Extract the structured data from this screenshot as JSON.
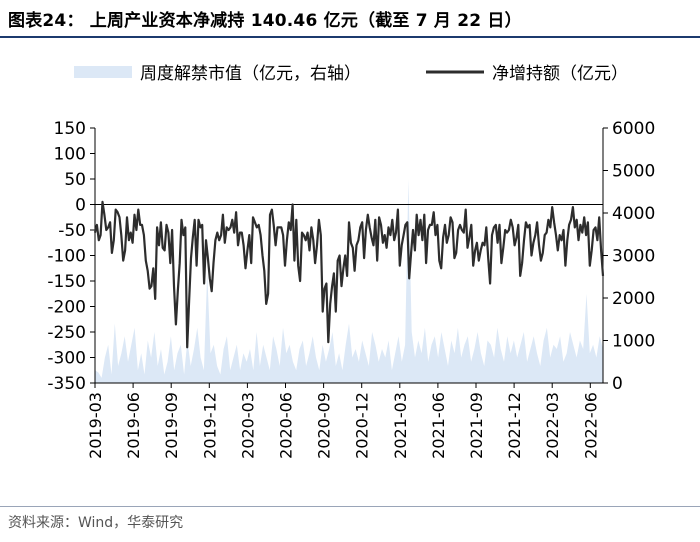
{
  "title": "图表24：  上周产业资本净减持 140.46 亿元（截至 7 月 22 日）",
  "source": "资料来源：Wind，华泰研究",
  "colors": {
    "area": "#dce8f6",
    "line": "#2d2d2d",
    "title_rule": "#1c3a6e"
  },
  "chart_data": {
    "type": "line",
    "x_tick_labels": [
      "2019-03",
      "2019-06",
      "2019-09",
      "2019-12",
      "2020-03",
      "2020-06",
      "2020-09",
      "2020-12",
      "2021-03",
      "2021-06",
      "2021-09",
      "2021-12",
      "2022-03",
      "2022-06"
    ],
    "x_range": [
      "2019-03",
      "2022-07"
    ],
    "y_left": {
      "ticks": [
        150,
        100,
        50,
        0,
        -50,
        -100,
        -150,
        -200,
        -250,
        -300,
        -350
      ],
      "range": [
        -350,
        150
      ]
    },
    "y_right": {
      "ticks": [
        6000,
        5000,
        4000,
        3000,
        2000,
        1000,
        0
      ],
      "range": [
        0,
        6000
      ]
    },
    "legend": {
      "position": "top",
      "area_label": "周度解禁市值（亿元，右轴）",
      "line_label": "净增持额（亿元）"
    },
    "series": [
      {
        "name": "周度解禁市值（亿元，右轴）",
        "kind": "area",
        "axis": "right",
        "values": [
          300,
          250,
          120,
          600,
          900,
          200,
          1400,
          400,
          700,
          1100,
          500,
          900,
          1300,
          300,
          700,
          200,
          1000,
          600,
          1200,
          400,
          800,
          200,
          500,
          1100,
          300,
          700,
          900,
          200,
          1000,
          400,
          800,
          1300,
          600,
          300,
          2600,
          700,
          900,
          400,
          200,
          800,
          1100,
          300,
          600,
          900,
          300,
          700,
          500,
          800,
          300,
          1200,
          400,
          900,
          600,
          300,
          1100,
          800,
          400,
          1300,
          700,
          900,
          500,
          300,
          800,
          1000,
          400,
          700,
          1100,
          600,
          300,
          900,
          500,
          800,
          1200,
          400,
          700,
          300,
          900,
          1400,
          600,
          800,
          500,
          1000,
          700,
          400,
          1200,
          900,
          500,
          800,
          600,
          1000,
          300,
          700,
          1100,
          500,
          900,
          4800,
          1200,
          600,
          1000,
          700,
          1300,
          500,
          900,
          1100,
          600,
          1200,
          800,
          400,
          1000,
          700,
          1300,
          600,
          900,
          1100,
          500,
          800,
          1200,
          700,
          400,
          1000,
          900,
          600,
          1300,
          800,
          500,
          1100,
          700,
          1000,
          600,
          900,
          1200,
          500,
          800,
          1100,
          700,
          400,
          1000,
          1300,
          600,
          900,
          800,
          1100,
          500,
          700,
          1200,
          900,
          600,
          1000,
          800,
          2100,
          700,
          900,
          600,
          1100,
          800
        ]
      },
      {
        "name": "净增持额（亿元）",
        "kind": "line",
        "axis": "left",
        "values": [
          -55,
          -40,
          -70,
          -60,
          5,
          -20,
          -50,
          -45,
          -35,
          -95,
          -70,
          -10,
          -15,
          -25,
          -60,
          -110,
          -90,
          -25,
          -70,
          -55,
          -75,
          -20,
          -50,
          -10,
          -40,
          -40,
          -60,
          -110,
          -130,
          -165,
          -160,
          -125,
          -185,
          -45,
          -80,
          -35,
          -85,
          -90,
          -40,
          -55,
          -115,
          -50,
          -160,
          -235,
          -170,
          -115,
          -30,
          -60,
          -45,
          -280,
          -190,
          -105,
          -65,
          -30,
          -120,
          -30,
          -45,
          -40,
          -155,
          -70,
          -105,
          -145,
          -170,
          -115,
          -70,
          -55,
          -70,
          -60,
          -20,
          -75,
          -45,
          -50,
          -45,
          -30,
          -55,
          -15,
          -80,
          -55,
          -55,
          -80,
          -125,
          -90,
          -60,
          -115,
          -25,
          -35,
          -45,
          -40,
          -60,
          -100,
          -130,
          -195,
          -175,
          -20,
          -10,
          -40,
          -80,
          -45,
          -45,
          -45,
          -60,
          -120,
          -70,
          -35,
          -50,
          0,
          -110,
          -30,
          -120,
          -150,
          -55,
          -60,
          -70,
          -55,
          -90,
          -45,
          -70,
          -115,
          -80,
          -30,
          -60,
          -210,
          -165,
          -155,
          -270,
          -195,
          -160,
          -135,
          -210,
          -110,
          -100,
          -160,
          -125,
          -100,
          -140,
          -35,
          -75,
          -85,
          -130,
          -80,
          -70,
          -45,
          -35,
          -105,
          -50,
          -20,
          -45,
          -65,
          -80,
          -30,
          -110,
          -25,
          -40,
          -75,
          -60,
          -85,
          -45,
          -60,
          -30,
          -70,
          -55,
          -10,
          -120,
          -80,
          -60,
          -40,
          -35,
          -145,
          -95,
          -50,
          -90,
          -20,
          -60,
          -30,
          -70,
          -20,
          -115,
          -50,
          -40,
          -40,
          -15,
          -60,
          -40,
          -110,
          -125,
          -65,
          -40,
          -75,
          -60,
          -25,
          -35,
          -105,
          -95,
          -50,
          -40,
          -50,
          -55,
          -10,
          -85,
          -65,
          -40,
          -120,
          -90,
          -75,
          -110,
          -90,
          -75,
          -80,
          -45,
          -105,
          -155,
          -60,
          -45,
          -40,
          -75,
          -40,
          -115,
          -85,
          -50,
          -55,
          -50,
          -30,
          -45,
          -80,
          -65,
          -40,
          -140,
          -115,
          -70,
          -35,
          -45,
          -40,
          -100,
          -75,
          -60,
          -35,
          -80,
          -110,
          -95,
          -60,
          -55,
          -30,
          -45,
          -5,
          -35,
          -60,
          -90,
          -60,
          -70,
          -50,
          -120,
          -70,
          -40,
          -30,
          -5,
          -45,
          -30,
          -70,
          -40,
          -55,
          -25,
          -60,
          -35,
          -120,
          -90,
          -50,
          -45,
          -70,
          -25,
          -90,
          -140
        ]
      }
    ]
  }
}
